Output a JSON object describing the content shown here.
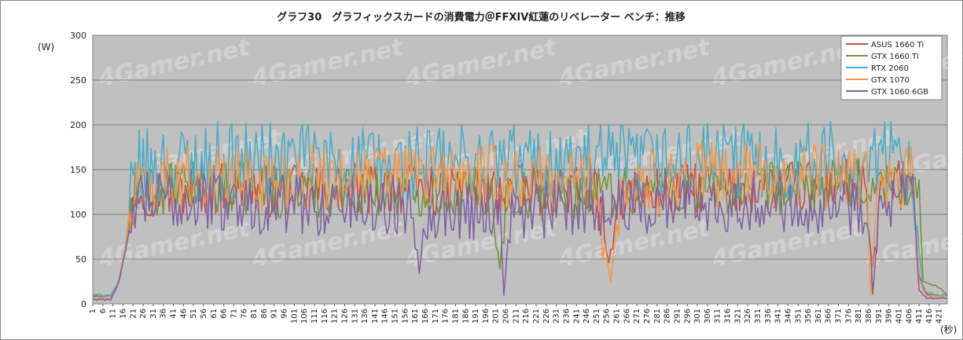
{
  "chart_data": {
    "type": "line",
    "title": "グラフ30　グラフィックスカードの消費電力＠FFXIV紅蓮のリベレーター ベンチ：推移",
    "ylabel": "(W)",
    "xlabel": "(秒)",
    "ylim": [
      0,
      300
    ],
    "yticks": [
      0,
      50,
      100,
      150,
      200,
      250,
      300
    ],
    "x_start": 1,
    "x_end": 425,
    "x_tick_step": 5,
    "grid": "horizontal",
    "plot_background": "#c0c0c0",
    "legend_position": "top-right",
    "watermark": "4Gamer.net",
    "keyframes_note_x": "keyframes are [second, watts]",
    "series": [
      {
        "name": "ASUS 1660 Ti",
        "color": "#c0504d",
        "keyframes": [
          [
            1,
            9
          ],
          [
            10,
            9
          ],
          [
            14,
            25
          ],
          [
            17,
            60
          ],
          [
            22,
            130
          ],
          [
            40,
            125
          ],
          [
            60,
            130
          ],
          [
            100,
            125
          ],
          [
            150,
            130
          ],
          [
            200,
            125
          ],
          [
            250,
            128
          ],
          [
            257,
            45
          ],
          [
            261,
            120
          ],
          [
            300,
            128
          ],
          [
            350,
            130
          ],
          [
            383,
            135
          ],
          [
            388,
            40
          ],
          [
            392,
            125
          ],
          [
            408,
            140
          ],
          [
            411,
            30
          ],
          [
            415,
            10
          ],
          [
            425,
            9
          ]
        ]
      },
      {
        "name": "GTX 1660 Ti",
        "color": "#77933c",
        "keyframes": [
          [
            1,
            9
          ],
          [
            10,
            9
          ],
          [
            14,
            25
          ],
          [
            17,
            60
          ],
          [
            22,
            125
          ],
          [
            40,
            130
          ],
          [
            60,
            130
          ],
          [
            100,
            125
          ],
          [
            150,
            128
          ],
          [
            199,
            125
          ],
          [
            203,
            40
          ],
          [
            206,
            120
          ],
          [
            250,
            125
          ],
          [
            300,
            128
          ],
          [
            350,
            130
          ],
          [
            408,
            135
          ],
          [
            411,
            120
          ],
          [
            413,
            25
          ],
          [
            420,
            20
          ],
          [
            425,
            10
          ]
        ]
      },
      {
        "name": "RTX 2060",
        "color": "#4bacc6",
        "keyframes": [
          [
            1,
            10
          ],
          [
            10,
            10
          ],
          [
            14,
            25
          ],
          [
            17,
            60
          ],
          [
            22,
            150
          ],
          [
            40,
            155
          ],
          [
            60,
            160
          ],
          [
            100,
            160
          ],
          [
            150,
            155
          ],
          [
            200,
            160
          ],
          [
            250,
            155
          ],
          [
            300,
            160
          ],
          [
            350,
            160
          ],
          [
            408,
            160
          ],
          [
            411,
            60
          ],
          [
            413,
            15
          ],
          [
            420,
            10
          ],
          [
            425,
            10
          ]
        ]
      },
      {
        "name": "GTX 1070",
        "color": "#f79646",
        "keyframes": [
          [
            1,
            6
          ],
          [
            10,
            6
          ],
          [
            14,
            25
          ],
          [
            17,
            60
          ],
          [
            22,
            135
          ],
          [
            40,
            140
          ],
          [
            60,
            140
          ],
          [
            100,
            140
          ],
          [
            150,
            145
          ],
          [
            200,
            140
          ],
          [
            250,
            140
          ],
          [
            258,
            25
          ],
          [
            263,
            130
          ],
          [
            300,
            145
          ],
          [
            350,
            145
          ],
          [
            385,
            140
          ],
          [
            387,
            10
          ],
          [
            390,
            120
          ],
          [
            408,
            145
          ],
          [
            411,
            25
          ],
          [
            415,
            8
          ],
          [
            425,
            8
          ]
        ]
      },
      {
        "name": "GTX 1060 6GB",
        "color": "#8064a2",
        "keyframes": [
          [
            1,
            5
          ],
          [
            10,
            5
          ],
          [
            14,
            25
          ],
          [
            17,
            55
          ],
          [
            22,
            115
          ],
          [
            40,
            115
          ],
          [
            60,
            115
          ],
          [
            100,
            110
          ],
          [
            150,
            110
          ],
          [
            160,
            110
          ],
          [
            163,
            35
          ],
          [
            166,
            105
          ],
          [
            203,
            105
          ],
          [
            205,
            10
          ],
          [
            208,
            100
          ],
          [
            250,
            110
          ],
          [
            300,
            115
          ],
          [
            350,
            115
          ],
          [
            386,
            110
          ],
          [
            388,
            10
          ],
          [
            391,
            100
          ],
          [
            408,
            120
          ],
          [
            411,
            15
          ],
          [
            415,
            6
          ],
          [
            425,
            6
          ]
        ]
      }
    ]
  }
}
